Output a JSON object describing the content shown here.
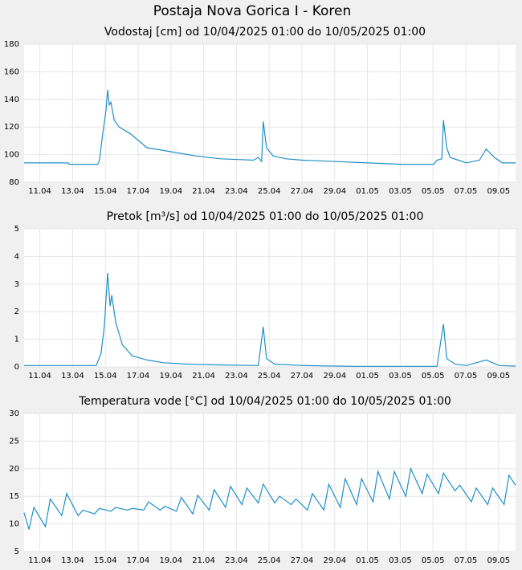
{
  "title": "Postaja Nova Gorica I - Koren",
  "chart_data": [
    {
      "type": "line",
      "title": "Vodostaj [cm] od 10/04/2025 01:00 do 10/05/2025 01:00",
      "color": "#1f8fc8",
      "grid": true,
      "xlim": [
        0,
        30
      ],
      "ylim": [
        80,
        180
      ],
      "yticks": [
        80,
        100,
        120,
        140,
        160,
        180
      ],
      "xticks": [
        {
          "value": 0.96,
          "label": "11.04"
        },
        {
          "value": 2.96,
          "label": "13.04"
        },
        {
          "value": 4.96,
          "label": "15.04"
        },
        {
          "value": 6.96,
          "label": "17.04"
        },
        {
          "value": 8.96,
          "label": "19.04"
        },
        {
          "value": 10.96,
          "label": "21.04"
        },
        {
          "value": 12.96,
          "label": "23.04"
        },
        {
          "value": 14.96,
          "label": "25.04"
        },
        {
          "value": 16.96,
          "label": "27.04"
        },
        {
          "value": 18.96,
          "label": "29.04"
        },
        {
          "value": 20.96,
          "label": "01.05"
        },
        {
          "value": 22.96,
          "label": "03.05"
        },
        {
          "value": 24.96,
          "label": "05.05"
        },
        {
          "value": 26.96,
          "label": "07.05"
        },
        {
          "value": 28.96,
          "label": "09.05"
        }
      ],
      "x": [
        0,
        2.7,
        2.75,
        4.5,
        4.6,
        4.8,
        5.0,
        5.1,
        5.2,
        5.3,
        5.5,
        5.8,
        6.5,
        7.5,
        8.5,
        9.5,
        10.5,
        12,
        14,
        14.3,
        14.5,
        14.6,
        14.8,
        15.2,
        16,
        17,
        19,
        21,
        23,
        25,
        25.2,
        25.5,
        25.6,
        25.8,
        26,
        26.5,
        27,
        27.8,
        28.2,
        28.7,
        29.2,
        30
      ],
      "values": [
        94,
        94,
        93,
        93,
        96,
        115,
        132,
        147,
        136,
        138,
        125,
        120,
        115,
        105,
        103,
        101,
        99,
        97,
        96,
        98,
        95,
        124,
        105,
        99,
        97,
        96,
        95,
        94,
        93,
        93,
        96,
        97,
        125,
        105,
        98,
        96,
        94,
        96,
        104,
        98,
        94,
        94
      ]
    },
    {
      "type": "line",
      "title": "Pretok [m³/s] od 10/04/2025 01:00 do 10/05/2025 01:00",
      "color": "#1f8fc8",
      "grid": true,
      "xlim": [
        0,
        30
      ],
      "ylim": [
        0,
        5
      ],
      "yticks": [
        0,
        1,
        2,
        3,
        4,
        5
      ],
      "xticks": [
        {
          "value": 0.96,
          "label": "11.04"
        },
        {
          "value": 2.96,
          "label": "13.04"
        },
        {
          "value": 4.96,
          "label": "15.04"
        },
        {
          "value": 6.96,
          "label": "17.04"
        },
        {
          "value": 8.96,
          "label": "19.04"
        },
        {
          "value": 10.96,
          "label": "21.04"
        },
        {
          "value": 12.96,
          "label": "23.04"
        },
        {
          "value": 14.96,
          "label": "25.04"
        },
        {
          "value": 16.96,
          "label": "27.04"
        },
        {
          "value": 18.96,
          "label": "29.04"
        },
        {
          "value": 20.96,
          "label": "01.05"
        },
        {
          "value": 22.96,
          "label": "03.05"
        },
        {
          "value": 24.96,
          "label": "05.05"
        },
        {
          "value": 26.96,
          "label": "07.05"
        },
        {
          "value": 28.96,
          "label": "09.05"
        }
      ],
      "x": [
        0,
        4.4,
        4.7,
        4.9,
        5.1,
        5.25,
        5.35,
        5.6,
        6,
        6.6,
        7.5,
        8.5,
        10,
        12,
        14.3,
        14.6,
        14.8,
        15.3,
        17,
        20,
        25.2,
        25.6,
        25.8,
        26.3,
        27,
        28.2,
        29,
        30
      ],
      "values": [
        0.05,
        0.05,
        0.5,
        1.5,
        3.4,
        2.2,
        2.6,
        1.6,
        0.8,
        0.4,
        0.25,
        0.15,
        0.1,
        0.07,
        0.05,
        1.45,
        0.3,
        0.1,
        0.05,
        0.02,
        0.02,
        1.55,
        0.3,
        0.1,
        0.05,
        0.25,
        0.05,
        0.03
      ]
    },
    {
      "type": "line",
      "title": "Temperatura vode [°C] od 10/04/2025 01:00 do 10/05/2025 01:00",
      "color": "#1f8fc8",
      "grid": true,
      "xlim": [
        0,
        30
      ],
      "ylim": [
        5,
        30
      ],
      "yticks": [
        5,
        10,
        15,
        20,
        25,
        30
      ],
      "xticks": [
        {
          "value": 0.96,
          "label": "11.04"
        },
        {
          "value": 2.96,
          "label": "13.04"
        },
        {
          "value": 4.96,
          "label": "15.04"
        },
        {
          "value": 6.96,
          "label": "17.04"
        },
        {
          "value": 8.96,
          "label": "19.04"
        },
        {
          "value": 10.96,
          "label": "21.04"
        },
        {
          "value": 12.96,
          "label": "23.04"
        },
        {
          "value": 14.96,
          "label": "25.04"
        },
        {
          "value": 16.96,
          "label": "27.04"
        },
        {
          "value": 18.96,
          "label": "29.04"
        },
        {
          "value": 20.96,
          "label": "01.05"
        },
        {
          "value": 22.96,
          "label": "03.05"
        },
        {
          "value": 24.96,
          "label": "05.05"
        },
        {
          "value": 26.96,
          "label": "07.05"
        },
        {
          "value": 28.96,
          "label": "09.05"
        }
      ],
      "x": [
        0,
        0.3,
        0.6,
        1.3,
        1.6,
        2.3,
        2.6,
        3.3,
        3.6,
        4.3,
        4.6,
        5.3,
        5.6,
        6.3,
        6.6,
        7.3,
        7.6,
        8.3,
        8.6,
        9.3,
        9.6,
        10.3,
        10.6,
        11.3,
        11.6,
        12.3,
        12.6,
        13.3,
        13.6,
        14.3,
        14.6,
        15.3,
        15.6,
        16.3,
        16.6,
        17.3,
        17.6,
        18.3,
        18.6,
        19.3,
        19.6,
        20.3,
        20.6,
        21.3,
        21.6,
        22.3,
        22.6,
        23.3,
        23.6,
        24.3,
        24.6,
        25.3,
        25.6,
        26.3,
        26.6,
        27.3,
        27.6,
        28.3,
        28.6,
        29.3,
        29.6,
        30
      ],
      "values": [
        12,
        9,
        13,
        9.5,
        14.5,
        11.5,
        15.5,
        11.5,
        12.5,
        11.8,
        12.8,
        12.3,
        13,
        12.5,
        12.8,
        12.5,
        14,
        12.5,
        13.2,
        12.3,
        14.8,
        11.8,
        15.2,
        12.5,
        16.2,
        13,
        16.8,
        13.5,
        16.5,
        13.8,
        17.2,
        13.8,
        15,
        13.5,
        14.5,
        12.5,
        15.5,
        12.5,
        17.2,
        13,
        18.2,
        13.5,
        18.2,
        14,
        19.5,
        14.5,
        19.5,
        15,
        20,
        15.5,
        19,
        15.5,
        19.2,
        16,
        17,
        14,
        16.5,
        13.5,
        16.5,
        13.5,
        18.8,
        17
      ]
    }
  ]
}
